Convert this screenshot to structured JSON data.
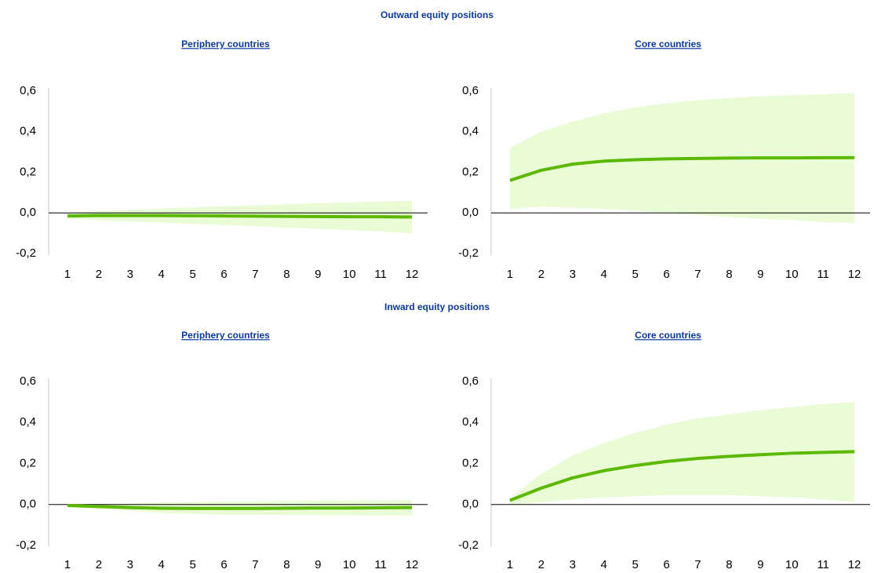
{
  "headings": [
    "Outward equity positions",
    "Inward equity positions"
  ],
  "chart_data": [
    {
      "type": "line",
      "title": "Periphery countries",
      "categories": [
        "1",
        "2",
        "3",
        "4",
        "5",
        "6",
        "7",
        "8",
        "9",
        "10",
        "11",
        "12"
      ],
      "values": [
        -0.015,
        -0.013,
        -0.013,
        -0.013,
        -0.014,
        -0.015,
        -0.016,
        -0.017,
        -0.018,
        -0.019,
        -0.019,
        -0.02
      ],
      "band": {
        "upper": [
          0.0,
          0.008,
          0.015,
          0.022,
          0.028,
          0.033,
          0.038,
          0.043,
          0.048,
          0.052,
          0.056,
          0.06
        ],
        "lower": [
          -0.03,
          -0.036,
          -0.042,
          -0.048,
          -0.054,
          -0.06,
          -0.066,
          -0.072,
          -0.078,
          -0.085,
          -0.092,
          -0.1
        ],
        "color": "#e9fcd6"
      },
      "color": "#5cb800",
      "ylim": [
        -0.2,
        0.6
      ],
      "yticks": [
        {
          "value": -0.2,
          "label": "-0,2"
        },
        {
          "value": 0,
          "label": "0,0"
        },
        {
          "value": 0.2,
          "label": "0,2"
        },
        {
          "value": 0.4,
          "label": "0,4"
        },
        {
          "value": 0.6,
          "label": "0,6"
        }
      ]
    },
    {
      "type": "line",
      "title": "Core countries",
      "categories": [
        "1",
        "2",
        "3",
        "4",
        "5",
        "6",
        "7",
        "8",
        "9",
        "10",
        "11",
        "12"
      ],
      "values": [
        0.16,
        0.21,
        0.24,
        0.255,
        0.262,
        0.266,
        0.268,
        0.27,
        0.271,
        0.271,
        0.272,
        0.272
      ],
      "band": {
        "upper": [
          0.32,
          0.4,
          0.45,
          0.49,
          0.52,
          0.54,
          0.555,
          0.565,
          0.575,
          0.58,
          0.585,
          0.59
        ],
        "lower": [
          0.02,
          0.03,
          0.025,
          0.02,
          0.01,
          0.0,
          -0.01,
          -0.02,
          -0.03,
          -0.035,
          -0.045,
          -0.05
        ],
        "color": "#e9fcd6"
      },
      "color": "#5cb800",
      "ylim": [
        -0.2,
        0.6
      ],
      "yticks": [
        {
          "value": -0.2,
          "label": "-0,2"
        },
        {
          "value": 0,
          "label": "0,0"
        },
        {
          "value": 0.2,
          "label": "0,2"
        },
        {
          "value": 0.4,
          "label": "0,4"
        },
        {
          "value": 0.6,
          "label": "0,6"
        }
      ]
    },
    {
      "type": "line",
      "title": "Periphery countries",
      "categories": [
        "1",
        "2",
        "3",
        "4",
        "5",
        "6",
        "7",
        "8",
        "9",
        "10",
        "11",
        "12"
      ],
      "values": [
        -0.005,
        -0.01,
        -0.015,
        -0.018,
        -0.019,
        -0.019,
        -0.019,
        -0.018,
        -0.017,
        -0.017,
        -0.016,
        -0.015
      ],
      "band": {
        "upper": [
          -0.003,
          0.0,
          0.005,
          0.01,
          0.012,
          0.015,
          0.016,
          0.018,
          0.02,
          0.02,
          0.021,
          0.022
        ],
        "lower": [
          -0.01,
          -0.02,
          -0.03,
          -0.04,
          -0.045,
          -0.05,
          -0.05,
          -0.052,
          -0.052,
          -0.053,
          -0.053,
          -0.053
        ],
        "color": "#e9fcd6"
      },
      "color": "#5cb800",
      "ylim": [
        -0.2,
        0.6
      ],
      "yticks": [
        {
          "value": -0.2,
          "label": "-0,2"
        },
        {
          "value": 0,
          "label": "0,0"
        },
        {
          "value": 0.2,
          "label": "0,2"
        },
        {
          "value": 0.4,
          "label": "0,4"
        },
        {
          "value": 0.6,
          "label": "0,6"
        }
      ]
    },
    {
      "type": "line",
      "title": "Core countries",
      "categories": [
        "1",
        "2",
        "3",
        "4",
        "5",
        "6",
        "7",
        "8",
        "9",
        "10",
        "11",
        "12"
      ],
      "values": [
        0.02,
        0.08,
        0.13,
        0.165,
        0.19,
        0.21,
        0.225,
        0.235,
        0.243,
        0.25,
        0.254,
        0.258
      ],
      "band": {
        "upper": [
          0.03,
          0.15,
          0.24,
          0.3,
          0.35,
          0.39,
          0.42,
          0.44,
          0.46,
          0.475,
          0.49,
          0.5
        ],
        "lower": [
          0.0,
          0.01,
          0.025,
          0.035,
          0.04,
          0.045,
          0.045,
          0.045,
          0.04,
          0.035,
          0.025,
          0.01
        ],
        "color": "#e9fcd6"
      },
      "color": "#5cb800",
      "ylim": [
        -0.2,
        0.6
      ],
      "yticks": [
        {
          "value": -0.2,
          "label": "-0,2"
        },
        {
          "value": 0,
          "label": "0,0"
        },
        {
          "value": 0.2,
          "label": "0,2"
        },
        {
          "value": 0.4,
          "label": "0,4"
        },
        {
          "value": 0.6,
          "label": "0,6"
        }
      ]
    }
  ]
}
